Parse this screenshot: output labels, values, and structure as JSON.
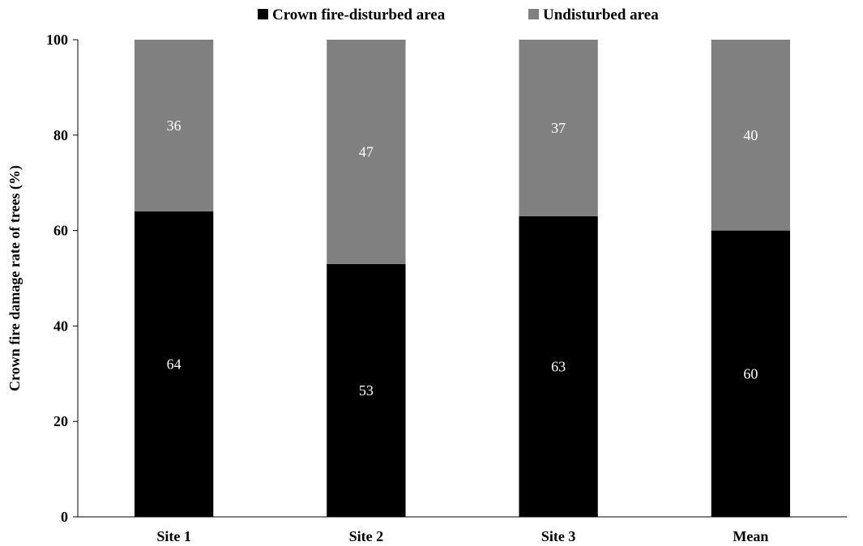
{
  "chart_data": {
    "type": "bar",
    "stacked": true,
    "categories": [
      "Site 1",
      "Site 2",
      "Site 3",
      "Mean"
    ],
    "series": [
      {
        "name": "Crown fire-disturbed area",
        "values": [
          64,
          53,
          63,
          60
        ],
        "color": "#000000"
      },
      {
        "name": "Undisturbed area",
        "values": [
          36,
          47,
          37,
          40
        ],
        "color": "#808080"
      }
    ],
    "ylabel": "Crown fire damage rate of trees  (%)",
    "ylim": [
      0,
      100
    ],
    "yticks": [
      0,
      20,
      40,
      60,
      80,
      100
    ],
    "grid": false,
    "legend_position": "top"
  }
}
